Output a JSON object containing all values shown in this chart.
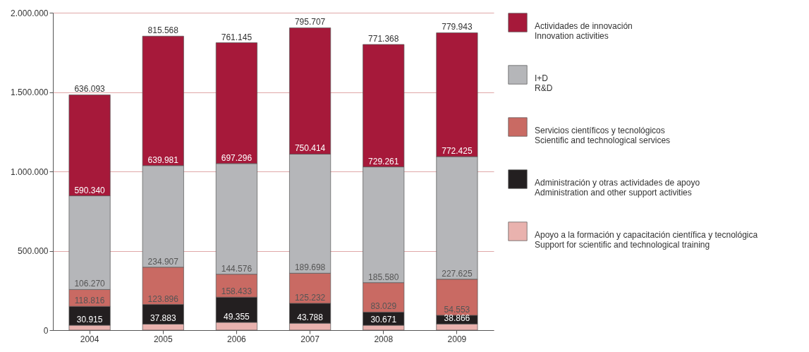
{
  "chart_data": {
    "type": "bar",
    "stacked": true,
    "categories": [
      "2004",
      "2005",
      "2006",
      "2007",
      "2008",
      "2009"
    ],
    "series": [
      {
        "name": "Apoyo a la formación y capacitación científica y tecnológica\nSupport for scientific and technological training",
        "color": "#e9b2ae",
        "values": [
          30915,
          37883,
          49355,
          43788,
          30671,
          38866
        ],
        "value_labels": [
          "30.915",
          "37.883",
          "49.355",
          "43.788",
          "30.671",
          "38.866"
        ]
      },
      {
        "name": "Administración y otras actividades de apoyo\nAdministration and other support activities",
        "color": "#231f20",
        "values": [
          118816,
          123896,
          158433,
          125232,
          83029,
          54553
        ],
        "value_labels": [
          "118.816",
          "123.896",
          "158.433",
          "125.232",
          "83.029",
          "54.553"
        ]
      },
      {
        "name": "Servicios científicos y tecnológicos\nScientific and technological services",
        "color": "#c96a63",
        "values": [
          106270,
          234907,
          144576,
          189698,
          185580,
          227625
        ],
        "value_labels": [
          "106.270",
          "234.907",
          "144.576",
          "189.698",
          "185.580",
          "227.625"
        ]
      },
      {
        "name": "I+D\nR&D",
        "color": "#b5b6b9",
        "values": [
          590340,
          639981,
          697296,
          750414,
          729261,
          772425
        ],
        "value_labels": [
          "590.340",
          "639.981",
          "697.296",
          "750.414",
          "729.261",
          "772.425"
        ]
      },
      {
        "name": "Actividades de innovación\nInnovation activities",
        "color": "#a6193a",
        "values": [
          636093,
          815568,
          761145,
          795707,
          771368,
          779943
        ],
        "value_labels": [
          "636.093",
          "815.568",
          "761.145",
          "795.707",
          "771.368",
          "779.943"
        ]
      }
    ],
    "ylim": [
      0,
      2000000
    ],
    "yticks": [
      0,
      {
        "value": 500000,
        "label": "500.000"
      },
      {
        "value": 1000000,
        "label": "1.000.000"
      },
      {
        "value": 1500000,
        "label": "1.500.000"
      },
      {
        "value": 2000000,
        "label": "2.000.000"
      }
    ],
    "grid": "y",
    "legend": "right"
  }
}
